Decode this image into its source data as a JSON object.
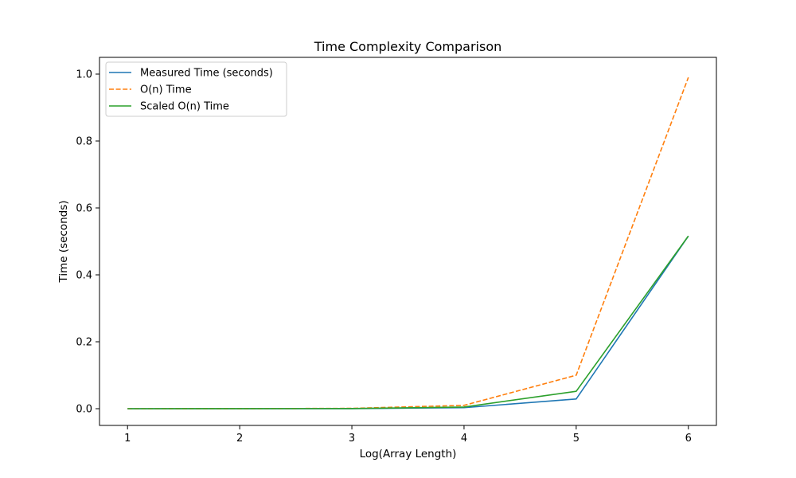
{
  "chart_data": {
    "type": "line",
    "title": "Time Complexity Comparison",
    "xlabel": "Log(Array Length)",
    "ylabel": "Time (seconds)",
    "x": [
      1,
      2,
      3,
      4,
      5,
      6
    ],
    "xticks": [
      "1",
      "2",
      "3",
      "4",
      "5",
      "6"
    ],
    "yticks": [
      "0.0",
      "0.2",
      "0.4",
      "0.6",
      "0.8",
      "1.0"
    ],
    "ytick_values": [
      0.0,
      0.2,
      0.4,
      0.6,
      0.8,
      1.0
    ],
    "xlim": [
      0.75,
      6.25
    ],
    "ylim": [
      -0.05,
      1.05
    ],
    "grid": false,
    "legend_position": "upper left",
    "series": [
      {
        "name": "Measured Time (seconds)",
        "values": [
          1e-06,
          1e-05,
          0.0002,
          0.003,
          0.029,
          0.516
        ],
        "color": "#1f77b4",
        "linestyle": "solid"
      },
      {
        "name": "O(n) Time",
        "values": [
          1e-05,
          0.0001,
          0.001,
          0.01,
          0.1,
          0.99
        ],
        "color": "#ff7f0e",
        "linestyle": "dashed"
      },
      {
        "name": "Scaled O(n) Time",
        "values": [
          5e-06,
          5e-05,
          0.0005,
          0.005,
          0.052,
          0.516
        ],
        "color": "#2ca02c",
        "linestyle": "solid"
      }
    ]
  }
}
